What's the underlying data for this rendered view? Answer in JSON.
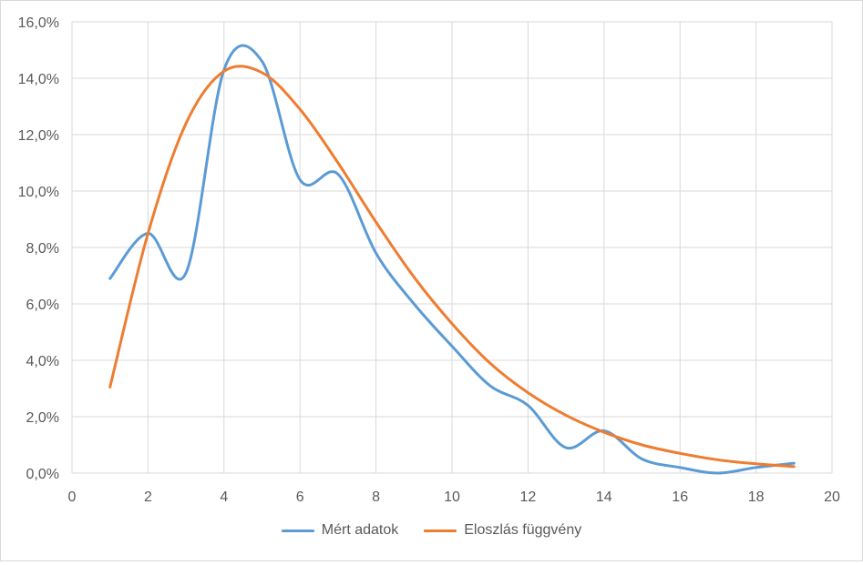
{
  "chart_data": {
    "type": "line",
    "title": "",
    "xlabel": "",
    "ylabel": "",
    "xlim": [
      0,
      20
    ],
    "ylim": [
      0,
      16
    ],
    "x_ticks": [
      0,
      2,
      4,
      6,
      8,
      10,
      12,
      14,
      16,
      18,
      20
    ],
    "x_tick_labels": [
      "0",
      "2",
      "4",
      "6",
      "8",
      "10",
      "12",
      "14",
      "16",
      "18",
      "20"
    ],
    "y_ticks": [
      0,
      2,
      4,
      6,
      8,
      10,
      12,
      14,
      16
    ],
    "y_tick_labels": [
      "0,0%",
      "2,0%",
      "4,0%",
      "6,0%",
      "8,0%",
      "10,0%",
      "12,0%",
      "14,0%",
      "16,0%"
    ],
    "grid": true,
    "legend_position": "bottom",
    "series": [
      {
        "name": "Mért adatok",
        "color": "#5b9bd5",
        "smooth": true,
        "x": [
          1,
          2,
          3,
          4,
          5,
          6,
          7,
          8,
          9,
          10,
          11,
          12,
          13,
          14,
          15,
          16,
          17,
          18,
          19
        ],
        "y": [
          6.9,
          8.5,
          7.1,
          14.3,
          14.6,
          10.4,
          10.6,
          7.8,
          6.0,
          4.5,
          3.1,
          2.4,
          0.9,
          1.5,
          0.5,
          0.2,
          0.0,
          0.2,
          0.35
        ]
      },
      {
        "name": "Eloszlás függvény",
        "color": "#ed7d31",
        "smooth": true,
        "x": [
          1,
          2,
          3,
          4,
          5,
          6,
          7,
          8,
          9,
          10,
          11,
          12,
          13,
          14,
          15,
          16,
          17,
          18,
          19
        ],
        "y": [
          3.05,
          8.5,
          12.4,
          14.25,
          14.2,
          12.9,
          11.0,
          8.9,
          6.95,
          5.3,
          3.9,
          2.85,
          2.05,
          1.45,
          1.0,
          0.7,
          0.47,
          0.33,
          0.23
        ]
      }
    ]
  }
}
